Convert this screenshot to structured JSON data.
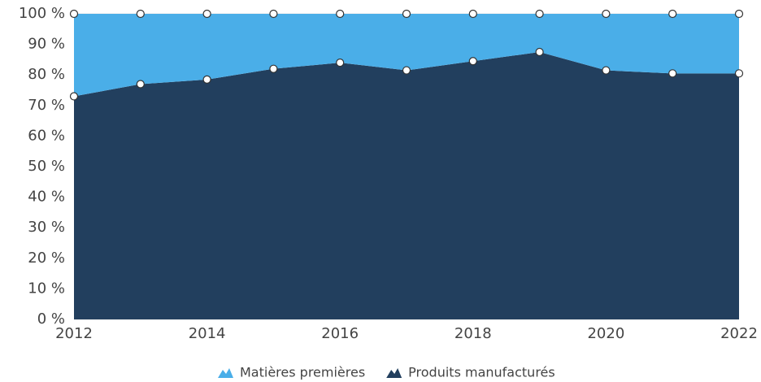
{
  "chart_data": {
    "type": "stacked_area",
    "x": [
      2012,
      2013,
      2014,
      2015,
      2016,
      2017,
      2018,
      2019,
      2020,
      2021,
      2022
    ],
    "series": [
      {
        "name": "Matières premières",
        "color": "#4aaee8",
        "values": [
          27,
          23,
          21.5,
          18,
          16,
          18.5,
          15.5,
          12.5,
          18.5,
          19.5,
          19.5
        ]
      },
      {
        "name": "Produits manufacturés",
        "color": "#223f5e",
        "values": [
          73,
          77,
          78.5,
          82,
          84,
          81.5,
          84.5,
          87.5,
          81.5,
          80.5,
          80.5
        ]
      }
    ],
    "xlim": [
      2012,
      2022
    ],
    "xticks": [
      2012,
      2014,
      2016,
      2018,
      2020,
      2022
    ],
    "ylim": [
      0,
      100
    ],
    "yticks": [
      {
        "value": 0,
        "label": "0 %"
      },
      {
        "value": 10,
        "label": "10 %"
      },
      {
        "value": 20,
        "label": "20 %"
      },
      {
        "value": 30,
        "label": "30 %"
      },
      {
        "value": 40,
        "label": "40 %"
      },
      {
        "value": 50,
        "label": "50 %"
      },
      {
        "value": 60,
        "label": "60 %"
      },
      {
        "value": 70,
        "label": "70 %"
      },
      {
        "value": 80,
        "label": "80 %"
      },
      {
        "value": 90,
        "label": "90 %"
      },
      {
        "value": 100,
        "label": "100 %"
      }
    ],
    "grid": true,
    "legend": "bottom"
  }
}
